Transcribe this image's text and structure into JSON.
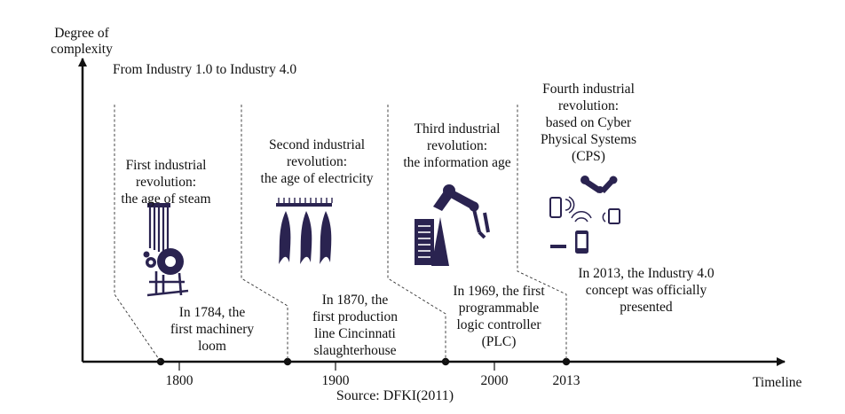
{
  "axes": {
    "y_label": "Degree of\ncomplexity",
    "x_label": "Timeline",
    "title": "From Industry 1.0 to Industry 4.0",
    "ticks": [
      "1800",
      "1900",
      "2000",
      "2013"
    ]
  },
  "stages": [
    {
      "title": "First industrial\nrevolution:\nthe age of steam",
      "milestone": "In 1784, the\nfirst machinery\nloom",
      "icon": "steam-loom-icon"
    },
    {
      "title": "Second industrial\nrevolution:\nthe age of electricity",
      "milestone": "In 1870, the\nfirst production\nline Cincinnati\nslaughterhouse",
      "icon": "production-line-icon"
    },
    {
      "title": "Third industrial\nrevolution:\nthe information age",
      "milestone": "In 1969, the first\nprogrammable\nlogic controller\n(PLC)",
      "icon": "robot-arm-icon"
    },
    {
      "title": "Fourth industrial\nrevolution:\nbased on Cyber\nPhysical Systems\n(CPS)",
      "milestone": "In 2013, the Industry 4.0\nconcept was officially\npresented",
      "icon": "cyber-physical-icon"
    }
  ],
  "source": "Source: DFKI(2011)",
  "colors": {
    "line": "#111111",
    "icon": "#2a2350"
  }
}
